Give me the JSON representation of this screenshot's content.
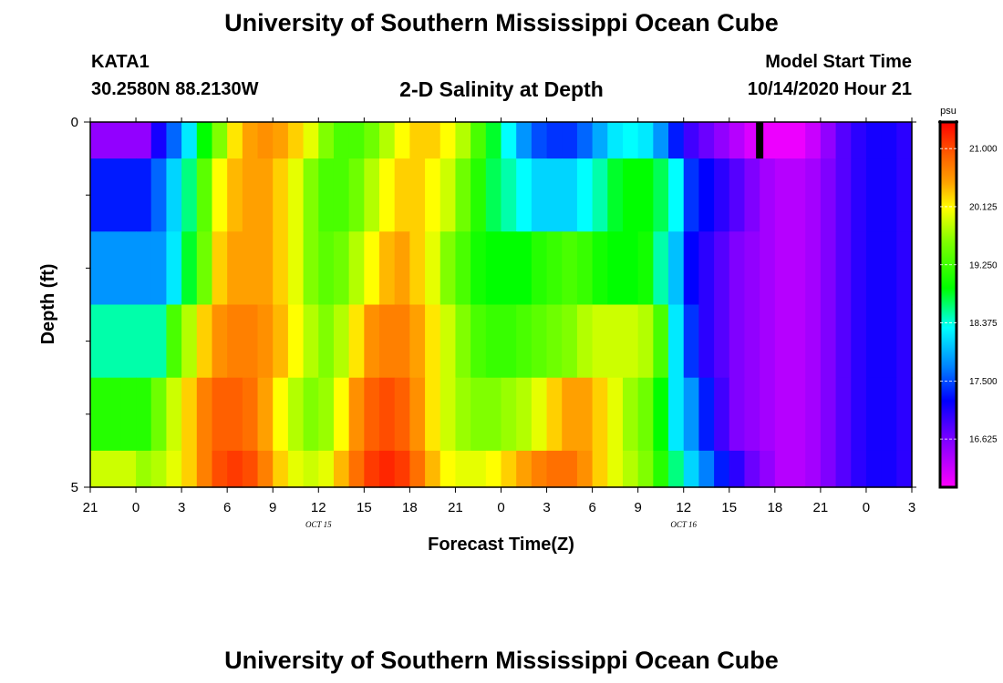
{
  "page": {
    "title_top": "University of Southern Mississippi Ocean Cube",
    "title_bottom": "University of Southern Mississippi Ocean Cube",
    "station_id": "KATA1",
    "station_coords": "30.2580N 88.2130W",
    "plot_title": "2-D Salinity at Depth",
    "model_start_label": "Model Start Time",
    "model_start_value": "10/14/2020 Hour 21"
  },
  "chart_data": {
    "type": "heatmap",
    "title": "2-D Salinity at Depth",
    "xlabel": "Forecast Time(Z)",
    "ylabel": "Depth (ft)",
    "x_tick_labels": [
      "21",
      "0",
      "3",
      "6",
      "9",
      "12",
      "15",
      "18",
      "21",
      "0",
      "3",
      "6",
      "9",
      "12",
      "15",
      "18",
      "21",
      "0",
      "3"
    ],
    "date_labels": [
      {
        "text": "OCT 15",
        "after_tick_index": 5
      },
      {
        "text": "OCT 16",
        "after_tick_index": 13
      }
    ],
    "x_range_hours": [
      0,
      54
    ],
    "y_range_ft": [
      0,
      5
    ],
    "y_tick_labels": [
      {
        "value": 0,
        "label": "0"
      },
      {
        "value": 5,
        "label": "5"
      }
    ],
    "y_minor_ticks": [
      1,
      2,
      3,
      4
    ],
    "depth_layers_ft": [
      0,
      0.5,
      1.5,
      2.5,
      3.5,
      4.5
    ],
    "layer_bounds_ft": [
      0,
      0.5,
      1.5,
      2.5,
      3.5,
      4.5,
      5
    ],
    "time_step_hours": 1,
    "values_psu": [
      [
        16.5,
        16.5,
        16.5,
        16.5,
        17.1,
        17.6,
        18.2,
        18.9,
        19.6,
        20.2,
        20.5,
        20.6,
        20.5,
        20.3,
        20.0,
        19.6,
        19.3,
        19.3,
        19.5,
        19.8,
        20.1,
        20.3,
        20.3,
        20.1,
        19.8,
        19.3,
        18.8,
        18.3,
        17.8,
        17.5,
        17.4,
        17.4,
        17.6,
        17.9,
        18.2,
        18.3,
        18.2,
        17.8,
        17.3,
        16.9,
        16.7,
        16.5,
        16.3,
        16.1,
        16.0,
        16.0,
        16.0,
        16.2,
        16.5,
        16.8,
        17.0,
        17.1,
        17.1,
        17.0
      ],
      [
        17.3,
        17.3,
        17.3,
        17.3,
        17.6,
        18.1,
        18.6,
        19.4,
        20.1,
        20.4,
        20.5,
        20.5,
        20.3,
        20.0,
        19.6,
        19.3,
        19.3,
        19.5,
        19.8,
        20.1,
        20.3,
        20.3,
        20.1,
        19.9,
        19.5,
        19.1,
        18.7,
        18.5,
        18.3,
        18.1,
        18.1,
        18.1,
        18.3,
        18.5,
        18.8,
        18.9,
        18.9,
        18.7,
        18.3,
        17.4,
        17.2,
        17.0,
        16.8,
        16.6,
        16.4,
        16.3,
        16.3,
        16.4,
        16.6,
        16.8,
        17.0,
        17.1,
        17.1,
        17.0
      ],
      [
        17.8,
        17.8,
        17.8,
        17.8,
        17.8,
        18.2,
        18.8,
        19.5,
        20.3,
        20.5,
        20.5,
        20.5,
        20.3,
        20.0,
        19.6,
        19.4,
        19.5,
        19.8,
        20.1,
        20.4,
        20.5,
        20.3,
        20.0,
        19.6,
        19.3,
        19.0,
        18.9,
        18.9,
        18.9,
        19.1,
        19.2,
        19.3,
        19.2,
        19.0,
        18.9,
        18.9,
        19.0,
        18.5,
        18.0,
        17.2,
        17.0,
        16.8,
        16.6,
        16.5,
        16.4,
        16.3,
        16.3,
        16.4,
        16.6,
        16.8,
        17.0,
        17.1,
        17.1,
        17.0
      ],
      [
        18.5,
        18.5,
        18.5,
        18.5,
        18.5,
        19.3,
        19.8,
        20.3,
        20.6,
        20.7,
        20.7,
        20.6,
        20.4,
        20.1,
        19.8,
        19.6,
        19.8,
        20.2,
        20.6,
        20.7,
        20.7,
        20.5,
        20.2,
        19.9,
        19.6,
        19.3,
        19.2,
        19.2,
        19.3,
        19.4,
        19.5,
        19.6,
        19.8,
        19.9,
        19.9,
        19.9,
        19.8,
        19.3,
        18.2,
        17.4,
        17.0,
        16.8,
        16.6,
        16.5,
        16.4,
        16.3,
        16.3,
        16.4,
        16.6,
        16.8,
        17.0,
        17.1,
        17.1,
        17.0
      ],
      [
        19.1,
        19.1,
        19.1,
        19.1,
        19.5,
        19.9,
        20.3,
        20.7,
        20.9,
        20.9,
        20.8,
        20.5,
        20.1,
        19.8,
        19.6,
        19.7,
        20.1,
        20.6,
        20.9,
        21.0,
        20.9,
        20.6,
        20.2,
        19.9,
        19.7,
        19.6,
        19.6,
        19.7,
        19.8,
        20.0,
        20.3,
        20.5,
        20.5,
        20.3,
        20.0,
        19.7,
        19.5,
        18.9,
        18.2,
        17.8,
        17.3,
        16.9,
        16.6,
        16.5,
        16.4,
        16.3,
        16.3,
        16.4,
        16.6,
        16.8,
        17.0,
        17.1,
        17.1,
        17.0
      ],
      [
        19.9,
        19.9,
        19.9,
        19.7,
        19.8,
        20.0,
        20.3,
        20.7,
        21.0,
        21.1,
        21.0,
        20.7,
        20.3,
        20.0,
        19.9,
        20.0,
        20.4,
        20.8,
        21.1,
        21.2,
        21.1,
        20.8,
        20.4,
        20.1,
        20.0,
        20.0,
        20.1,
        20.3,
        20.5,
        20.7,
        20.8,
        20.8,
        20.6,
        20.3,
        20.0,
        19.8,
        19.6,
        19.1,
        18.6,
        18.1,
        17.7,
        17.3,
        17.0,
        16.7,
        16.5,
        16.3,
        16.3,
        16.4,
        16.6,
        16.8,
        17.0,
        17.1,
        17.1,
        17.0
      ]
    ],
    "marker": {
      "hour": 44,
      "depth_from_ft": 0,
      "depth_to_ft": 0.5,
      "color": "#000000"
    },
    "colorbar": {
      "unit": "psu",
      "min": 15.9,
      "max": 21.4,
      "tick_values": [
        21.0,
        20.125,
        19.25,
        18.375,
        17.5,
        16.625
      ],
      "tick_labels": [
        "21.000",
        "20.125",
        "19.250",
        "18.375",
        "17.500",
        "16.625"
      ],
      "stops": [
        {
          "v": 15.9,
          "color": "#ff00ff"
        },
        {
          "v": 16.6,
          "color": "#8000ff"
        },
        {
          "v": 17.2,
          "color": "#0000ff"
        },
        {
          "v": 17.7,
          "color": "#0080ff"
        },
        {
          "v": 18.3,
          "color": "#00ffff"
        },
        {
          "v": 18.9,
          "color": "#00ff00"
        },
        {
          "v": 19.6,
          "color": "#80ff00"
        },
        {
          "v": 20.1,
          "color": "#ffff00"
        },
        {
          "v": 20.5,
          "color": "#ffa000"
        },
        {
          "v": 20.9,
          "color": "#ff6000"
        },
        {
          "v": 21.4,
          "color": "#ff0000"
        }
      ]
    }
  }
}
